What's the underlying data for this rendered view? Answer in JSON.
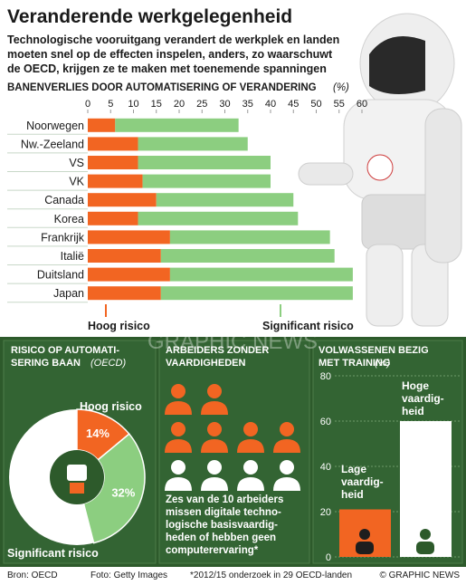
{
  "title": "Veranderende werkgelegenheid",
  "subtitle": "Technologische vooruitgang verandert de werkplek en landen\nmoeten snel op de effecten inspelen, anders, zo waarschuwt\nde OECD, krijgen ze te maken met toenemende spanningen",
  "watermark": "GRAPHIC NEWS",
  "chart_data": [
    {
      "type": "stacked-barh",
      "axis_label": "BANENVERLIES DOOR AUTOMATISERING OF VERANDERING",
      "axis_unit": "(%)",
      "categories": [
        "Noorwegen",
        "Nw.-Zeeland",
        "VS",
        "VK",
        "Canada",
        "Korea",
        "Frankrijk",
        "Italië",
        "Duitsland",
        "Japan"
      ],
      "series": [
        {
          "name": "Hoog risico",
          "color": "#f26522",
          "values": [
            6,
            11,
            11,
            12,
            15,
            11,
            18,
            16,
            18,
            16
          ]
        },
        {
          "name": "Significant risico",
          "color": "#8cce80",
          "values": [
            27,
            24,
            29,
            28,
            30,
            35,
            35,
            38,
            40,
            42
          ]
        }
      ],
      "xlim": [
        0,
        60
      ],
      "xticks": [
        0,
        5,
        10,
        15,
        20,
        25,
        30,
        35,
        40,
        45,
        50,
        55,
        60
      ]
    },
    {
      "type": "donut",
      "title": "RISICO OP AUTOMATI-\nSERING BAAN",
      "title_note": "(OECD)",
      "categories": [
        "Hoog risico",
        "Significant risico"
      ],
      "values": [
        14,
        32
      ],
      "value_labels": [
        "14%",
        "32%"
      ],
      "colors": [
        "#f26522",
        "#8cce80"
      ]
    },
    {
      "type": "pictogram",
      "title": "ARBEIDERS ZONDER\nVAARDIGHEDEN",
      "total": 10,
      "highlighted": 6,
      "text": "Zes van de 10 arbeiders\nmissen digitale techno-\nlogische basisvaardig-\nheden of hebben geen\ncomputerervaring*"
    },
    {
      "type": "bar",
      "title": "VOLWASSENEN BEZIG\nMET TRAINING",
      "title_note": "(%)",
      "categories": [
        "Lage\nvaardig-\nheid",
        "Hoge\nvaardig-\nheid"
      ],
      "values": [
        21,
        60
      ],
      "colors": [
        "#f26522",
        "#ffffff"
      ],
      "ylim": [
        0,
        80
      ],
      "yticks": [
        0,
        20,
        40,
        60,
        80
      ]
    }
  ],
  "footer": [
    "Bron: OECD",
    "Foto: Getty Images",
    "*2012/15 onderzoek in 29 OECD-landen",
    "© GRAPHIC NEWS"
  ]
}
